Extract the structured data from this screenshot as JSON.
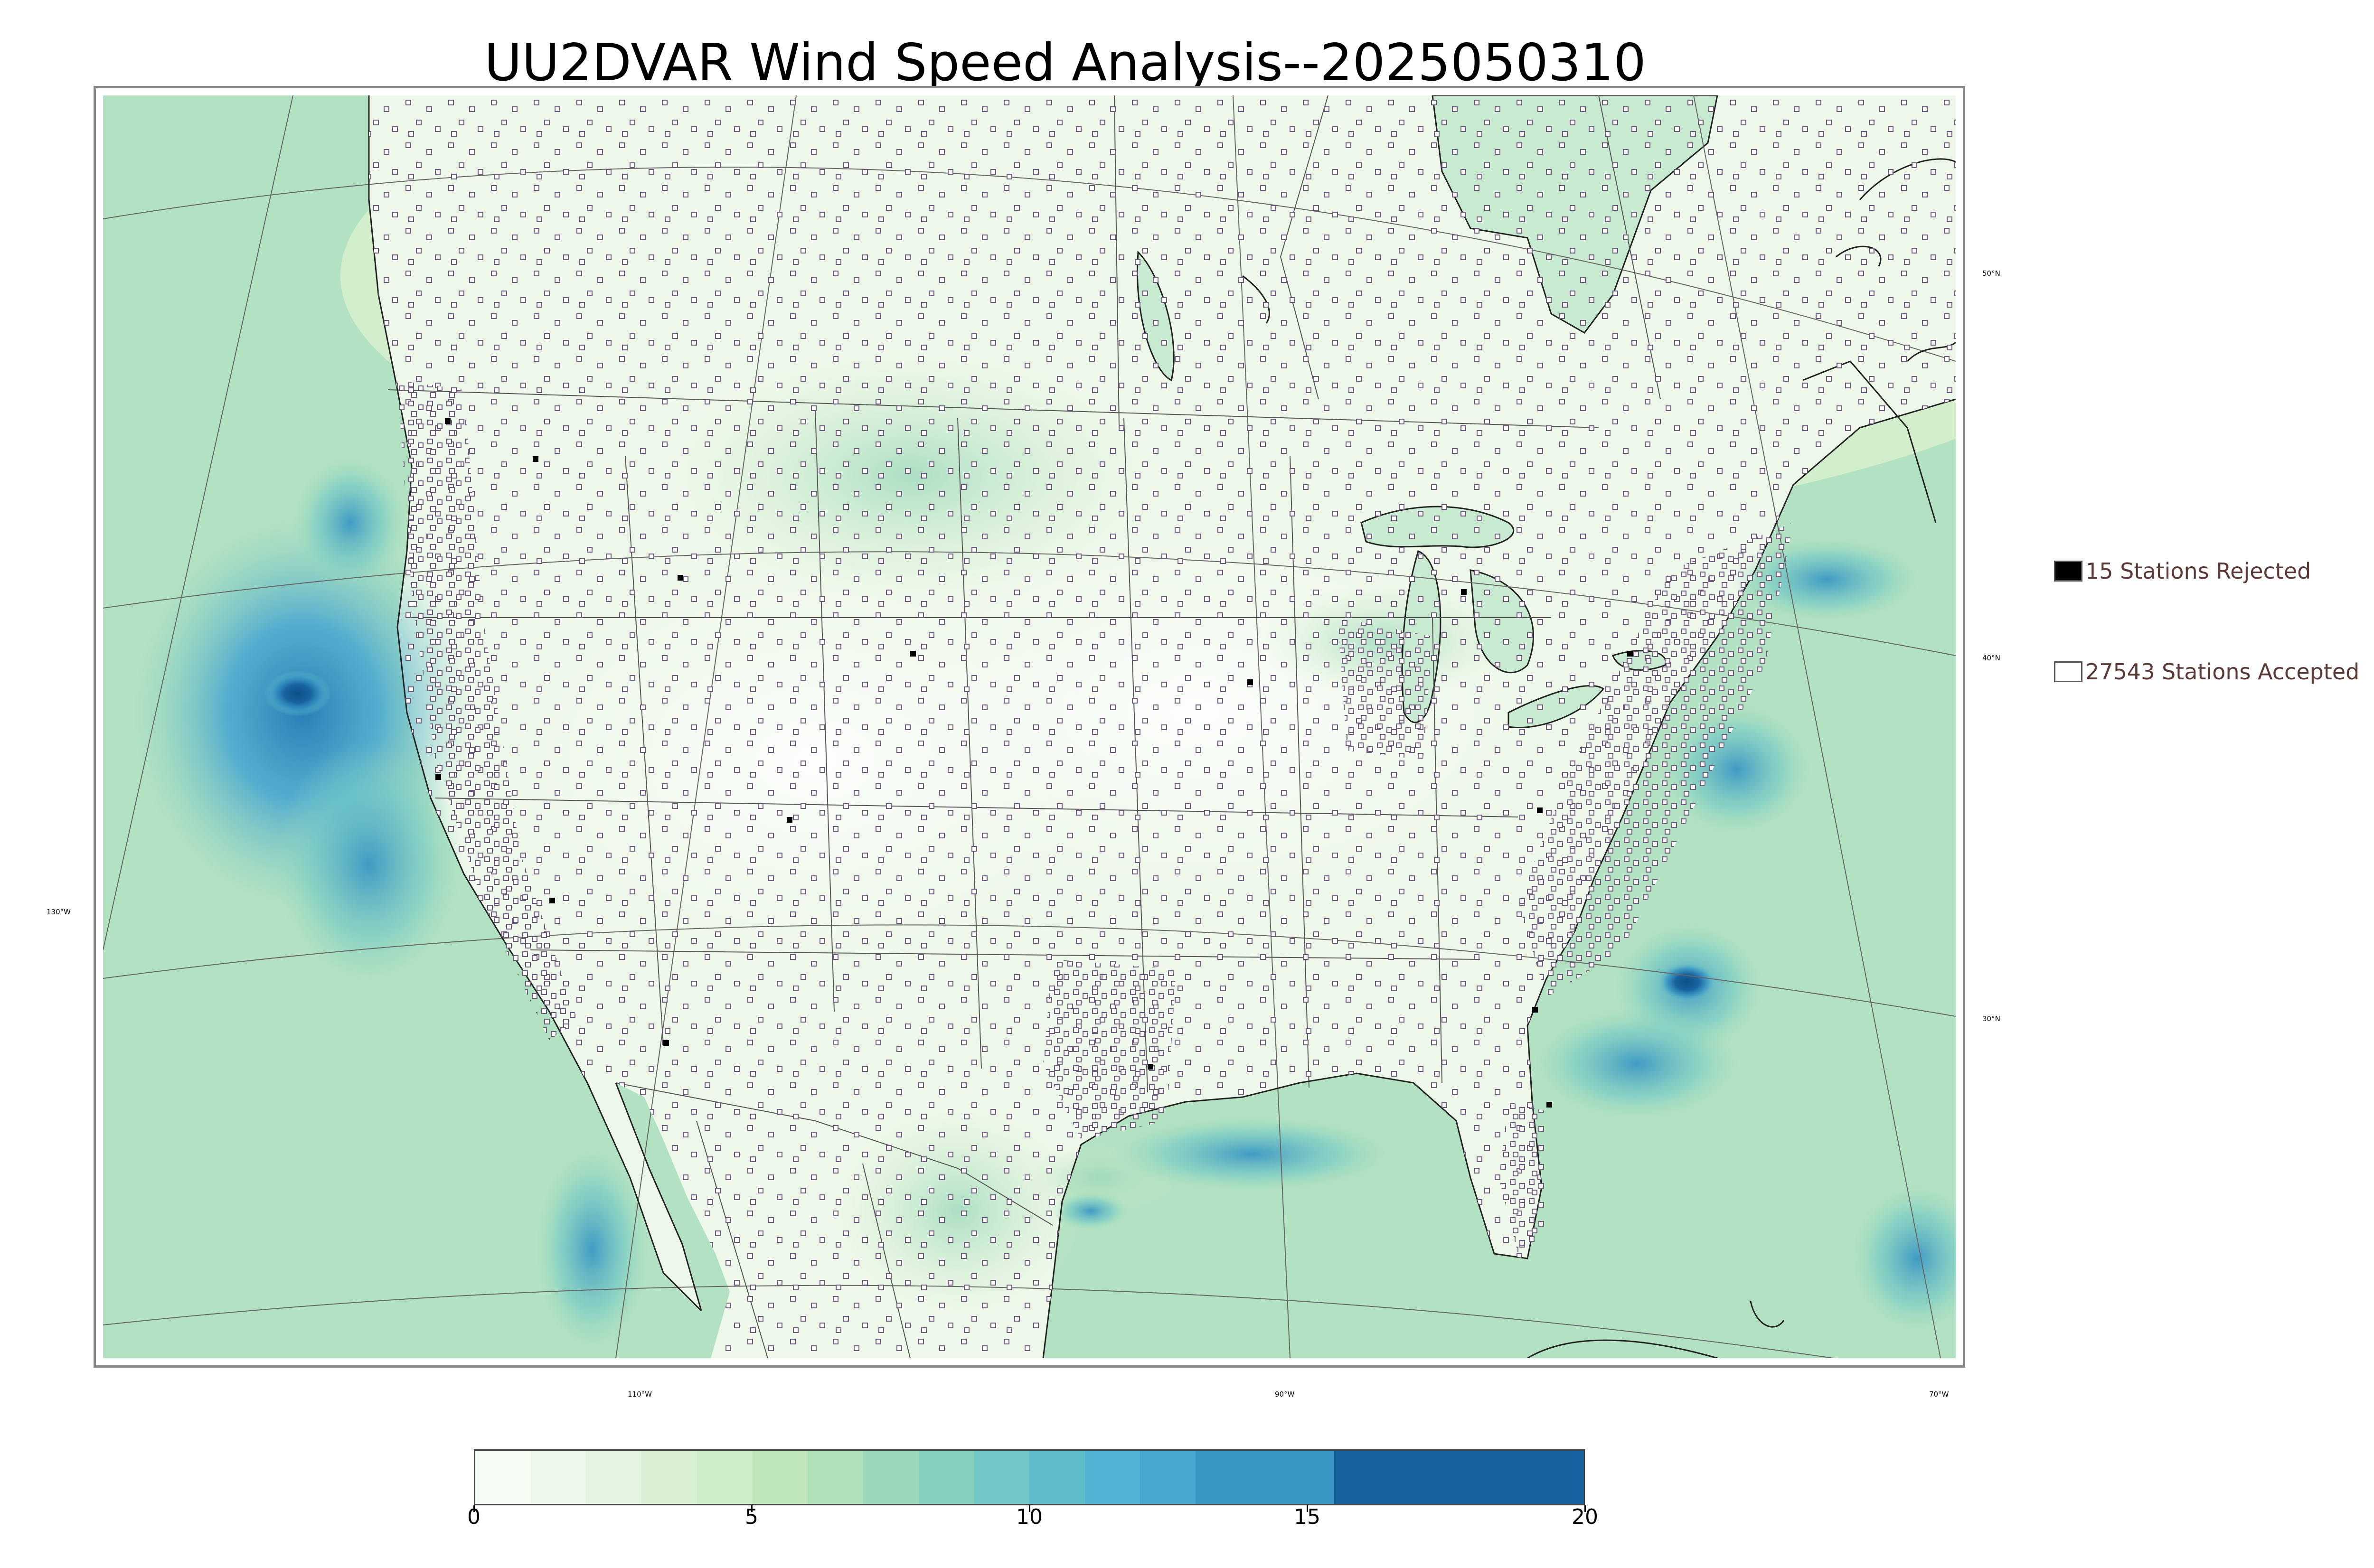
{
  "title": "UU2DVAR Wind Speed Analysis--2025050310",
  "longitude_labels": [
    "130°W",
    "110°W",
    "90°W",
    "70°W"
  ],
  "latitude_labels": [
    "50°N",
    "40°N",
    "30°N"
  ],
  "legend": {
    "rejected": {
      "label": "15 Stations Rejected",
      "color": "#000000"
    },
    "accepted": {
      "label": "27543 Stations Accepted",
      "color": "#ffffff"
    }
  },
  "colorbar": {
    "min": 0,
    "max": 20,
    "ticks": [
      "0",
      "5",
      "10",
      "15",
      "20"
    ],
    "bands": [
      {
        "from": 0,
        "to": 1,
        "color": "#f7fcf5"
      },
      {
        "from": 1,
        "to": 2,
        "color": "#eef8ea"
      },
      {
        "from": 2,
        "to": 3,
        "color": "#e4f4df"
      },
      {
        "from": 3,
        "to": 4,
        "color": "#d8efd3"
      },
      {
        "from": 4,
        "to": 5,
        "color": "#cdebc6"
      },
      {
        "from": 5,
        "to": 6,
        "color": "#bfe5bd"
      },
      {
        "from": 6,
        "to": 7,
        "color": "#ade0b8"
      },
      {
        "from": 7,
        "to": 8,
        "color": "#9ad8b9"
      },
      {
        "from": 8,
        "to": 9,
        "color": "#85d0bf"
      },
      {
        "from": 9,
        "to": 10,
        "color": "#71c8c6"
      },
      {
        "from": 10,
        "to": 11,
        "color": "#5fbdcb"
      },
      {
        "from": 11,
        "to": 12,
        "color": "#54b3d3"
      },
      {
        "from": 12,
        "to": 13,
        "color": "#4aa8d0"
      },
      {
        "from": 13,
        "to": 15.5,
        "color": "#3a96c4"
      },
      {
        "from": 15.5,
        "to": 20,
        "color": "#1763a0"
      }
    ]
  },
  "colors": {
    "land_base": "#f2faee",
    "ocean_base": "#b3e2c2",
    "coastline": "#222222",
    "border": "#555555",
    "graticule": "#666666",
    "station_accepted": "#6d5a7a",
    "station_rejected": "#000000"
  }
}
